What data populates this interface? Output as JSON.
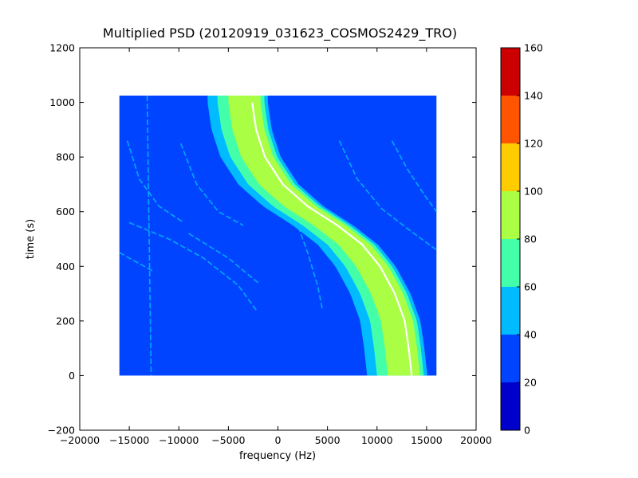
{
  "chart_data": {
    "type": "heatmap",
    "title": "Multiplied PSD (20120919_031623_COSMOS2429_TRO)",
    "xlabel": "frequency (Hz)",
    "ylabel": "time (s)",
    "xlim": [
      -20000,
      20000
    ],
    "ylim": [
      -200,
      1200
    ],
    "x_ticks": [
      -20000,
      -15000,
      -10000,
      -5000,
      0,
      5000,
      10000,
      15000,
      20000
    ],
    "x_tick_labels": [
      "−20000",
      "−15000",
      "−10000",
      "−5000",
      "0",
      "5000",
      "10000",
      "15000",
      "20000"
    ],
    "y_ticks": [
      -200,
      0,
      200,
      400,
      600,
      800,
      1000,
      1200
    ],
    "y_tick_labels": [
      "−200",
      "0",
      "200",
      "400",
      "600",
      "800",
      "1000",
      "1200"
    ],
    "data_extent": {
      "x": [
        -16000,
        16000
      ],
      "y": [
        0,
        1025
      ]
    },
    "background_value": 30,
    "colorbar": {
      "ticks": [
        0,
        20,
        40,
        60,
        80,
        100,
        120,
        140,
        160
      ],
      "levels": [
        {
          "range": [
            0,
            20
          ],
          "color": "#0000cc"
        },
        {
          "range": [
            20,
            40
          ],
          "color": "#0044ff"
        },
        {
          "range": [
            40,
            60
          ],
          "color": "#00bbff"
        },
        {
          "range": [
            60,
            80
          ],
          "color": "#44ffaa"
        },
        {
          "range": [
            80,
            100
          ],
          "color": "#aaff44"
        },
        {
          "range": [
            100,
            120
          ],
          "color": "#ffcc00"
        },
        {
          "range": [
            120,
            140
          ],
          "color": "#ff5500"
        },
        {
          "range": [
            140,
            160
          ],
          "color": "#cc0000"
        }
      ]
    },
    "signal_trace": {
      "points": [
        {
          "t": 1000,
          "f": -2600
        },
        {
          "t": 900,
          "f": -2200
        },
        {
          "t": 800,
          "f": -1300
        },
        {
          "t": 700,
          "f": 500
        },
        {
          "t": 620,
          "f": 3000
        },
        {
          "t": 550,
          "f": 6000
        },
        {
          "t": 480,
          "f": 8500
        },
        {
          "t": 400,
          "f": 10300
        },
        {
          "t": 300,
          "f": 11800
        },
        {
          "t": 200,
          "f": 12800
        },
        {
          "t": 100,
          "f": 13200
        },
        {
          "t": 0,
          "f": 13500
        }
      ],
      "bands": [
        {
          "half_width": 4500,
          "value": 50
        },
        {
          "half_width": 3500,
          "value": 70
        },
        {
          "half_width": 2400,
          "value": 90
        }
      ],
      "line_value": 160,
      "line_color": "#ffffff"
    },
    "faint_lines": [
      {
        "value": 50,
        "points": [
          {
            "t": 1025,
            "f": -13200
          },
          {
            "t": 0,
            "f": -12800
          }
        ]
      },
      {
        "value": 50,
        "points": [
          {
            "t": 860,
            "f": -15200
          },
          {
            "t": 720,
            "f": -14000
          },
          {
            "t": 620,
            "f": -12000
          },
          {
            "t": 560,
            "f": -9500
          }
        ]
      },
      {
        "value": 50,
        "points": [
          {
            "t": 850,
            "f": -9800
          },
          {
            "t": 700,
            "f": -8200
          },
          {
            "t": 600,
            "f": -6000
          },
          {
            "t": 550,
            "f": -3500
          }
        ]
      },
      {
        "value": 50,
        "points": [
          {
            "t": 450,
            "f": -16000
          },
          {
            "t": 380,
            "f": -12500
          }
        ]
      },
      {
        "value": 50,
        "points": [
          {
            "t": 560,
            "f": -15000
          },
          {
            "t": 500,
            "f": -11000
          },
          {
            "t": 430,
            "f": -7500
          },
          {
            "t": 330,
            "f": -4000
          },
          {
            "t": 240,
            "f": -2200
          }
        ]
      },
      {
        "value": 50,
        "points": [
          {
            "t": 520,
            "f": -9000
          },
          {
            "t": 430,
            "f": -5000
          },
          {
            "t": 340,
            "f": -2000
          }
        ]
      },
      {
        "value": 50,
        "points": [
          {
            "t": 860,
            "f": 6200
          },
          {
            "t": 720,
            "f": 8000
          },
          {
            "t": 610,
            "f": 10500
          },
          {
            "t": 540,
            "f": 13000
          },
          {
            "t": 460,
            "f": 16000
          }
        ]
      },
      {
        "value": 50,
        "points": [
          {
            "t": 860,
            "f": 11500
          },
          {
            "t": 760,
            "f": 13000
          },
          {
            "t": 660,
            "f": 14800
          },
          {
            "t": 600,
            "f": 16000
          }
        ]
      },
      {
        "value": 50,
        "points": [
          {
            "t": 600,
            "f": 1500
          },
          {
            "t": 450,
            "f": 3000
          },
          {
            "t": 330,
            "f": 4000
          },
          {
            "t": 240,
            "f": 4500
          }
        ]
      }
    ]
  }
}
